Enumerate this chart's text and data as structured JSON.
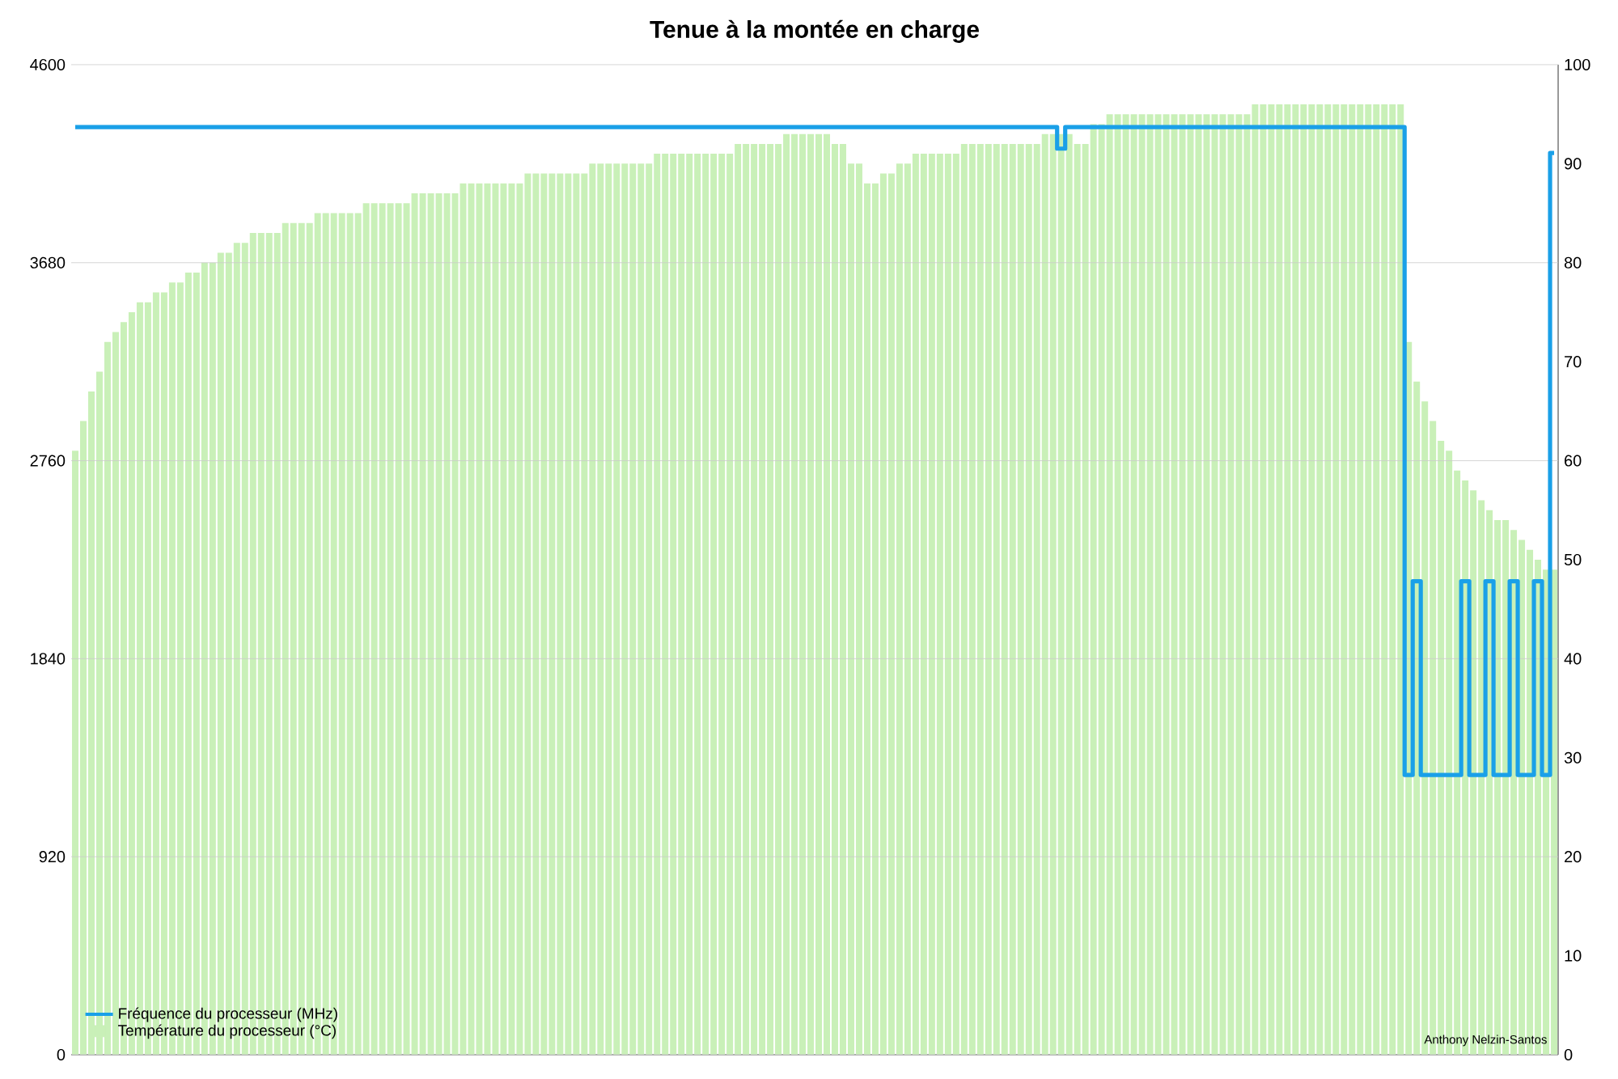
{
  "chart_data": {
    "type": "bar",
    "title": "Tenue à la montée en charge",
    "categories": [
      null,
      null,
      null,
      null,
      null,
      null,
      null,
      null,
      null,
      null,
      null,
      null,
      null,
      null,
      null,
      null,
      null,
      null,
      null,
      null,
      null,
      null,
      null,
      null,
      null,
      null,
      null,
      null,
      null,
      null,
      null,
      null,
      null,
      null,
      null,
      null,
      null,
      null,
      null,
      null,
      null,
      null,
      null,
      null,
      null,
      null,
      null,
      null,
      null,
      null,
      null,
      null,
      null,
      null,
      null,
      null,
      null,
      null,
      null,
      null,
      null,
      null,
      null,
      null,
      null,
      null,
      null,
      null,
      null,
      null,
      null,
      null,
      null,
      null,
      null,
      null,
      null,
      null,
      null,
      null,
      null,
      null,
      null,
      null,
      null,
      null,
      null,
      null,
      null,
      null,
      null,
      null,
      null,
      null,
      null,
      null,
      null,
      null,
      null,
      null,
      null,
      null,
      null,
      null,
      null,
      null,
      null,
      null,
      null,
      null,
      null,
      null,
      null,
      null,
      null,
      null,
      null,
      null,
      null,
      null,
      null,
      null,
      null,
      null,
      null,
      null,
      null,
      null,
      null,
      null,
      null,
      null,
      null,
      null,
      null,
      null,
      null,
      null,
      null,
      null,
      null,
      null,
      null,
      null,
      null,
      null,
      null,
      null,
      null,
      null,
      null,
      null,
      null,
      null,
      null,
      null,
      null,
      null,
      null,
      null,
      null,
      null,
      null,
      null,
      null,
      null,
      null,
      null,
      null,
      null,
      null,
      null,
      null,
      null,
      null,
      null,
      null,
      null,
      null,
      null,
      null,
      null,
      null,
      null
    ],
    "series": [
      {
        "name": "Fréquence du processeur (MHz)",
        "type": "step",
        "color": "#1aa0e8",
        "axis": "y",
        "values": [
          4310,
          4310,
          4310,
          4310,
          4310,
          4310,
          4310,
          4310,
          4310,
          4310,
          4310,
          4310,
          4310,
          4310,
          4310,
          4310,
          4310,
          4310,
          4310,
          4310,
          4310,
          4310,
          4310,
          4310,
          4310,
          4310,
          4310,
          4310,
          4310,
          4310,
          4310,
          4310,
          4310,
          4310,
          4310,
          4310,
          4310,
          4310,
          4310,
          4310,
          4310,
          4310,
          4310,
          4310,
          4310,
          4310,
          4310,
          4310,
          4310,
          4310,
          4310,
          4310,
          4310,
          4310,
          4310,
          4310,
          4310,
          4310,
          4310,
          4310,
          4310,
          4310,
          4310,
          4310,
          4310,
          4310,
          4310,
          4310,
          4310,
          4310,
          4310,
          4310,
          4310,
          4310,
          4310,
          4310,
          4310,
          4310,
          4310,
          4310,
          4310,
          4310,
          4310,
          4310,
          4310,
          4310,
          4310,
          4310,
          4310,
          4310,
          4310,
          4310,
          4310,
          4310,
          4310,
          4310,
          4310,
          4310,
          4310,
          4310,
          4310,
          4310,
          4310,
          4310,
          4310,
          4310,
          4310,
          4310,
          4310,
          4310,
          4310,
          4310,
          4310,
          4310,
          4310,
          4310,
          4310,
          4310,
          4310,
          4310,
          4310,
          4310,
          4210,
          4310,
          4310,
          4310,
          4310,
          4310,
          4310,
          4310,
          4310,
          4310,
          4310,
          4310,
          4310,
          4310,
          4310,
          4310,
          4310,
          4310,
          4310,
          4310,
          4310,
          4310,
          4310,
          4310,
          4310,
          4310,
          4310,
          4310,
          4310,
          4310,
          4310,
          4310,
          4310,
          4310,
          4310,
          4310,
          4310,
          4310,
          4310,
          4310,
          4310,
          4310,
          4310,
          1300,
          2200,
          1300,
          1300,
          1300,
          1300,
          1300,
          2200,
          1300,
          1300,
          2200,
          1300,
          1300,
          2200,
          1300,
          1300,
          2200,
          1300,
          4190
        ]
      },
      {
        "name": "Température du processeur (°C)",
        "color": "#c9f0b8",
        "axis": "y2",
        "values": [
          61,
          64,
          67,
          69,
          72,
          73,
          74,
          75,
          76,
          76,
          77,
          77,
          78,
          78,
          79,
          79,
          80,
          80,
          81,
          81,
          82,
          82,
          83,
          83,
          83,
          83,
          84,
          84,
          84,
          84,
          85,
          85,
          85,
          85,
          85,
          85,
          86,
          86,
          86,
          86,
          86,
          86,
          87,
          87,
          87,
          87,
          87,
          87,
          88,
          88,
          88,
          88,
          88,
          88,
          88,
          88,
          89,
          89,
          89,
          89,
          89,
          89,
          89,
          89,
          90,
          90,
          90,
          90,
          90,
          90,
          90,
          90,
          91,
          91,
          91,
          91,
          91,
          91,
          91,
          91,
          91,
          91,
          92,
          92,
          92,
          92,
          92,
          92,
          93,
          93,
          93,
          93,
          93,
          93,
          92,
          92,
          90,
          90,
          88,
          88,
          89,
          89,
          90,
          90,
          91,
          91,
          91,
          91,
          91,
          91,
          92,
          92,
          92,
          92,
          92,
          92,
          92,
          92,
          92,
          92,
          93,
          93,
          93,
          93,
          92,
          92,
          94,
          94,
          95,
          95,
          95,
          95,
          95,
          95,
          95,
          95,
          95,
          95,
          95,
          95,
          95,
          95,
          95,
          95,
          95,
          95,
          96,
          96,
          96,
          96,
          96,
          96,
          96,
          96,
          96,
          96,
          96,
          96,
          96,
          96,
          96,
          96,
          96,
          96,
          96,
          72,
          68,
          66,
          64,
          62,
          61,
          59,
          58,
          57,
          56,
          55,
          54,
          54,
          53,
          52,
          51,
          50,
          49,
          49
        ]
      }
    ],
    "ylim": [
      0,
      4600
    ],
    "yticks": [
      0,
      920,
      1840,
      2760,
      3680,
      4600
    ],
    "y2lim": [
      0,
      100
    ],
    "y2ticks": [
      0,
      10,
      20,
      30,
      40,
      50,
      60,
      70,
      80,
      90,
      100
    ],
    "tick_labels": "y",
    "grid": "y",
    "legend": "bottom left",
    "annotations": [
      "Anthony Nelzin-Santos"
    ]
  }
}
